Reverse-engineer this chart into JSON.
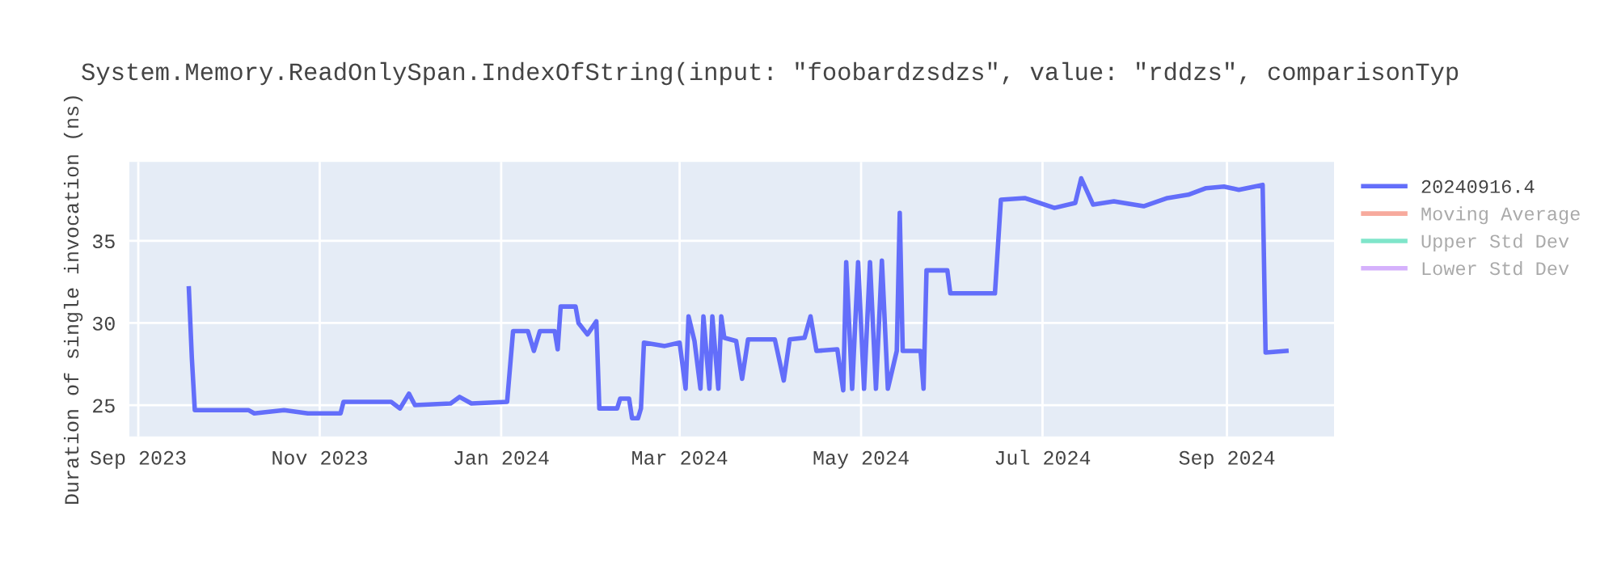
{
  "chart_data": {
    "type": "line",
    "title": "System.Memory.ReadOnlySpan.IndexOfString(input: \"foobardzsdzs\", value: \"rddzs\", comparisonTyp",
    "ylabel": "Duration of single invocation (ns)",
    "x": [
      "2023-09-18",
      "2023-09-19",
      "2023-09-20",
      "2023-10-08",
      "2023-10-10",
      "2023-10-20",
      "2023-10-28",
      "2023-11-08",
      "2023-11-09",
      "2023-11-25",
      "2023-11-28",
      "2023-12-01",
      "2023-12-03",
      "2023-12-15",
      "2023-12-18",
      "2023-12-22",
      "2024-01-03",
      "2024-01-05",
      "2024-01-10",
      "2024-01-12",
      "2024-01-14",
      "2024-01-19",
      "2024-01-20",
      "2024-01-21",
      "2024-01-26",
      "2024-01-27",
      "2024-01-30",
      "2024-02-02",
      "2024-02-03",
      "2024-02-09",
      "2024-02-10",
      "2024-02-13",
      "2024-02-14",
      "2024-02-16",
      "2024-02-17",
      "2024-02-18",
      "2024-02-25",
      "2024-03-01",
      "2024-03-03",
      "2024-03-04",
      "2024-03-06",
      "2024-03-08",
      "2024-03-09",
      "2024-03-11",
      "2024-03-12",
      "2024-03-14",
      "2024-03-15",
      "2024-03-16",
      "2024-03-20",
      "2024-03-22",
      "2024-03-24",
      "2024-04-02",
      "2024-04-05",
      "2024-04-07",
      "2024-04-12",
      "2024-04-14",
      "2024-04-16",
      "2024-04-23",
      "2024-04-25",
      "2024-04-26",
      "2024-04-28",
      "2024-04-30",
      "2024-05-02",
      "2024-05-04",
      "2024-05-06",
      "2024-05-08",
      "2024-05-10",
      "2024-05-13",
      "2024-05-14",
      "2024-05-15",
      "2024-05-21",
      "2024-05-22",
      "2024-05-23",
      "2024-05-30",
      "2024-05-31",
      "2024-06-15",
      "2024-06-17",
      "2024-06-25",
      "2024-07-05",
      "2024-07-12",
      "2024-07-14",
      "2024-07-18",
      "2024-07-25",
      "2024-08-04",
      "2024-08-12",
      "2024-08-19",
      "2024-08-25",
      "2024-08-31",
      "2024-09-05",
      "2024-09-13",
      "2024-09-14",
      "2024-09-21"
    ],
    "series": [
      {
        "name": "20240916.4",
        "color": "#636efa",
        "values": [
          32.1,
          27.9,
          24.7,
          24.7,
          24.5,
          24.7,
          24.5,
          24.5,
          25.2,
          25.2,
          24.8,
          25.7,
          25.0,
          25.1,
          25.5,
          25.1,
          25.2,
          29.5,
          29.5,
          28.3,
          29.5,
          29.5,
          28.4,
          31.0,
          31.0,
          30.0,
          29.3,
          30.1,
          24.8,
          24.8,
          25.4,
          25.4,
          24.2,
          24.2,
          24.8,
          28.8,
          28.6,
          28.8,
          26.0,
          30.4,
          28.9,
          26.0,
          30.4,
          26.0,
          30.4,
          26.0,
          30.4,
          29.1,
          28.9,
          26.6,
          29.0,
          29.0,
          26.5,
          29.0,
          29.1,
          30.4,
          28.3,
          28.4,
          25.9,
          33.7,
          26.0,
          33.7,
          26.0,
          33.7,
          26.0,
          33.8,
          26.0,
          28.3,
          36.7,
          28.3,
          28.3,
          26.0,
          33.2,
          33.2,
          31.8,
          31.8,
          37.5,
          37.6,
          37.0,
          37.3,
          38.8,
          37.2,
          37.4,
          37.1,
          37.6,
          37.8,
          38.2,
          38.3,
          38.1,
          38.4,
          28.2,
          28.3
        ]
      },
      {
        "name": "Moving Average",
        "color": "#ef553b",
        "values": [
          null,
          null,
          null,
          null,
          null,
          null,
          null,
          null,
          null,
          null,
          null,
          null,
          null,
          null,
          null,
          null,
          null,
          null,
          null,
          null,
          null,
          null,
          null,
          null,
          null,
          null,
          null,
          null,
          null,
          null,
          null,
          null,
          null,
          null,
          null,
          null,
          null,
          null,
          null,
          null,
          null,
          null,
          null,
          null,
          null,
          null,
          null,
          null,
          null,
          null,
          null,
          null,
          null,
          null,
          null,
          null,
          null,
          null,
          null,
          null,
          null,
          null,
          null,
          null,
          null,
          null,
          null,
          null,
          null,
          null,
          null,
          null,
          null,
          null,
          null,
          null,
          null,
          null,
          null,
          null,
          null,
          null,
          null,
          null,
          null,
          null,
          null,
          null,
          null,
          null,
          null,
          null
        ]
      },
      {
        "name": "Upper Std Dev",
        "color": "#00cc96",
        "values": [
          null,
          null,
          null,
          null,
          null,
          null,
          null,
          null,
          null,
          null,
          null,
          null,
          null,
          null,
          null,
          null,
          null,
          null,
          null,
          null,
          null,
          null,
          null,
          null,
          null,
          null,
          null,
          null,
          null,
          null,
          null,
          null,
          null,
          null,
          null,
          null,
          null,
          null,
          null,
          null,
          null,
          null,
          null,
          null,
          null,
          null,
          null,
          null,
          null,
          null,
          null,
          null,
          null,
          null,
          null,
          null,
          null,
          null,
          null,
          null,
          null,
          null,
          null,
          null,
          null,
          null,
          null,
          null,
          null,
          null,
          null,
          null,
          null,
          null,
          null,
          null,
          null,
          null,
          null,
          null,
          null,
          null,
          null,
          null,
          null,
          null,
          null,
          null,
          null,
          null,
          null,
          null
        ]
      },
      {
        "name": "Lower Std Dev",
        "color": "#ab63fa",
        "values": [
          null,
          null,
          null,
          null,
          null,
          null,
          null,
          null,
          null,
          null,
          null,
          null,
          null,
          null,
          null,
          null,
          null,
          null,
          null,
          null,
          null,
          null,
          null,
          null,
          null,
          null,
          null,
          null,
          null,
          null,
          null,
          null,
          null,
          null,
          null,
          null,
          null,
          null,
          null,
          null,
          null,
          null,
          null,
          null,
          null,
          null,
          null,
          null,
          null,
          null,
          null,
          null,
          null,
          null,
          null,
          null,
          null,
          null,
          null,
          null,
          null,
          null,
          null,
          null,
          null,
          null,
          null,
          null,
          null,
          null,
          null,
          null,
          null,
          null,
          null,
          null,
          null,
          null,
          null,
          null,
          null,
          null,
          null,
          null,
          null,
          null,
          null,
          null,
          null,
          null,
          null,
          null
        ]
      }
    ],
    "xlim": [
      "2023-08-29",
      "2024-10-07"
    ],
    "xticks": [
      {
        "value": "2023-09-01",
        "label": "Sep 2023"
      },
      {
        "value": "2023-11-01",
        "label": "Nov 2023"
      },
      {
        "value": "2024-01-01",
        "label": "Jan 2024"
      },
      {
        "value": "2024-03-01",
        "label": "Mar 2024"
      },
      {
        "value": "2024-05-01",
        "label": "May 2024"
      },
      {
        "value": "2024-07-01",
        "label": "Jul 2024"
      },
      {
        "value": "2024-09-01",
        "label": "Sep 2024"
      }
    ],
    "ylim": [
      23.1,
      39.8
    ],
    "yticks": [
      25,
      30,
      35
    ],
    "grid": true,
    "legend": "right",
    "marker": "none",
    "line_style": "solid"
  }
}
